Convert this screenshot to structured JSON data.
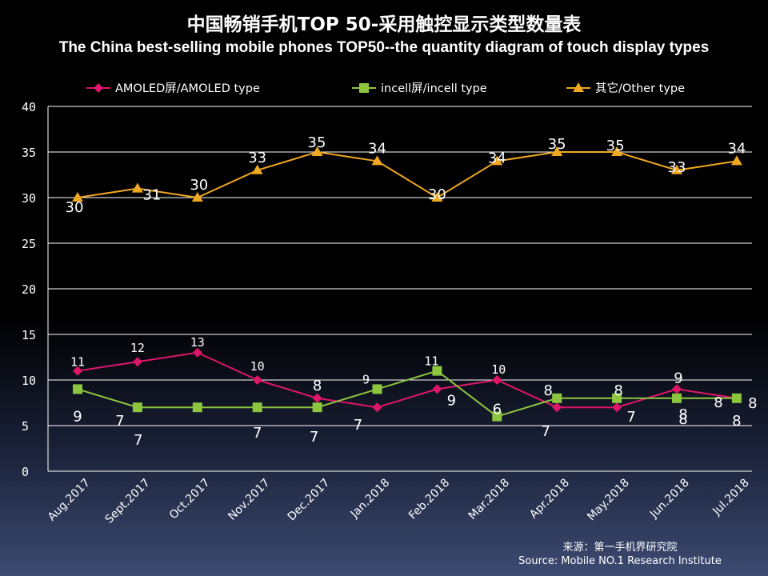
{
  "chart_data": {
    "type": "line",
    "title": "中国畅销手机TOP 50-采用触控显示类型数量表",
    "subtitle": "The China best-selling mobile phones TOP50--the quantity diagram of touch display types",
    "categories": [
      "Aug.2017",
      "Sept.2017",
      "Oct.2017",
      "Nov.2017",
      "Dec.2017",
      "Jan.2018",
      "Feb.2018",
      "Mar.2018",
      "Apr.2018",
      "May.2018",
      "Jun.2018",
      "Jul.2018"
    ],
    "ylim": [
      0,
      40
    ],
    "yticks": [
      "0",
      "5",
      "10",
      "15",
      "20",
      "25",
      "30",
      "35",
      "40"
    ],
    "grid": true,
    "legend_position": "top",
    "series": [
      {
        "name": "AMOLED屏/AMOLED type",
        "color": "#e0166a",
        "marker": "diamond",
        "values": [
          11,
          12,
          13,
          10,
          8,
          7,
          9,
          10,
          7,
          7,
          9,
          8
        ]
      },
      {
        "name": "incell屏/incell type",
        "color": "#8cc63f",
        "marker": "square",
        "values": [
          9,
          7,
          7,
          7,
          7,
          9,
          11,
          6,
          8,
          8,
          8,
          8
        ]
      },
      {
        "name": "其它/Other type",
        "color": "#f0a822",
        "marker": "triangle",
        "values": [
          30,
          31,
          30,
          33,
          35,
          34,
          30,
          34,
          35,
          35,
          33,
          34
        ]
      }
    ]
  },
  "source": {
    "cn": "来源：第一手机界研究院",
    "en": "Source: Mobile NO.1 Research Institute"
  }
}
